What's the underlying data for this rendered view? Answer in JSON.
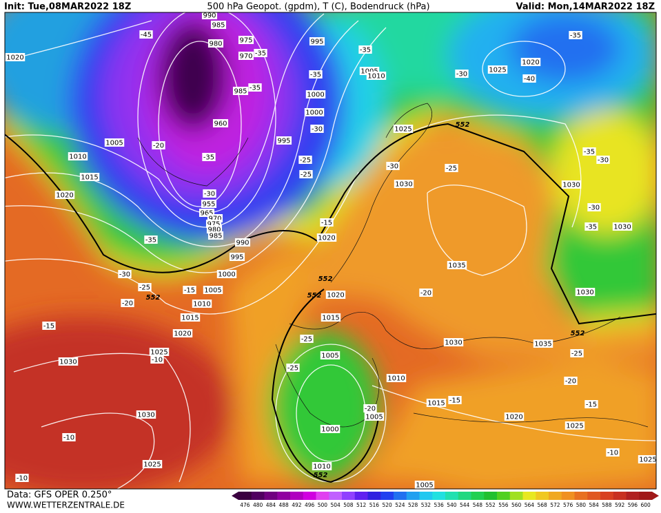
{
  "header": {
    "init": "Init: Tue,08MAR2022 18Z",
    "title": "500 hPa Geopot. (gpdm), T (C), Bodendruck (hPa)",
    "valid": "Valid: Mon,14MAR2022 18Z"
  },
  "footer": {
    "data": "Data: GFS OPER 0.250°",
    "site": "WWW.WETTERZENTRALE.DE"
  },
  "pressure_labels": [
    1020,
    990,
    985,
    980,
    975,
    970,
    995,
    1005,
    1010,
    1000,
    1000,
    985,
    960,
    995,
    1005,
    1010,
    1015,
    1020,
    955,
    965,
    970,
    975,
    980,
    985,
    990,
    995,
    1000,
    1005,
    1010,
    1015,
    1020,
    1025,
    1030,
    1030,
    1025,
    1025,
    1025,
    1020,
    1030,
    1030,
    1030,
    1035,
    1020,
    1020,
    1015,
    1030,
    1035,
    1030,
    1005,
    1010,
    1015,
    1020,
    1025,
    1005,
    1000,
    1010,
    1005,
    1025
  ],
  "temperature_labels": [
    -45,
    -35,
    -35,
    -35,
    -35,
    -30,
    -35,
    -40,
    -30,
    -20,
    -35,
    -25,
    -25,
    -30,
    -25,
    -35,
    -30,
    -30,
    -35,
    -30,
    -15,
    -35,
    -30,
    -25,
    -15,
    -20,
    -20,
    -25,
    -25,
    -15,
    -10,
    -20,
    -20,
    -25,
    -15,
    -15,
    -10,
    -10,
    -10
  ],
  "geopotential_labels": [
    552,
    552,
    552,
    552,
    552,
    552
  ],
  "colorbar": {
    "labels": [
      476,
      480,
      484,
      488,
      492,
      496,
      500,
      504,
      508,
      512,
      516,
      520,
      524,
      528,
      532,
      536,
      540,
      544,
      548,
      552,
      556,
      560,
      564,
      568,
      572,
      576,
      580,
      584,
      588,
      592,
      596,
      600
    ],
    "colors": [
      "#3a0040",
      "#500060",
      "#700080",
      "#9000a0",
      "#b000c0",
      "#d000e0",
      "#e040f0",
      "#c060ff",
      "#9040ff",
      "#6020f0",
      "#3020e0",
      "#2040f0",
      "#2070f0",
      "#20a0f0",
      "#20c8f0",
      "#20e0e0",
      "#20e0b0",
      "#20d880",
      "#20d050",
      "#20c030",
      "#50d020",
      "#a0e020",
      "#e8e820",
      "#f0c820",
      "#f0a820",
      "#f09020",
      "#e87020",
      "#e05820",
      "#d84020",
      "#c83020",
      "#b02020",
      "#a01818"
    ]
  }
}
